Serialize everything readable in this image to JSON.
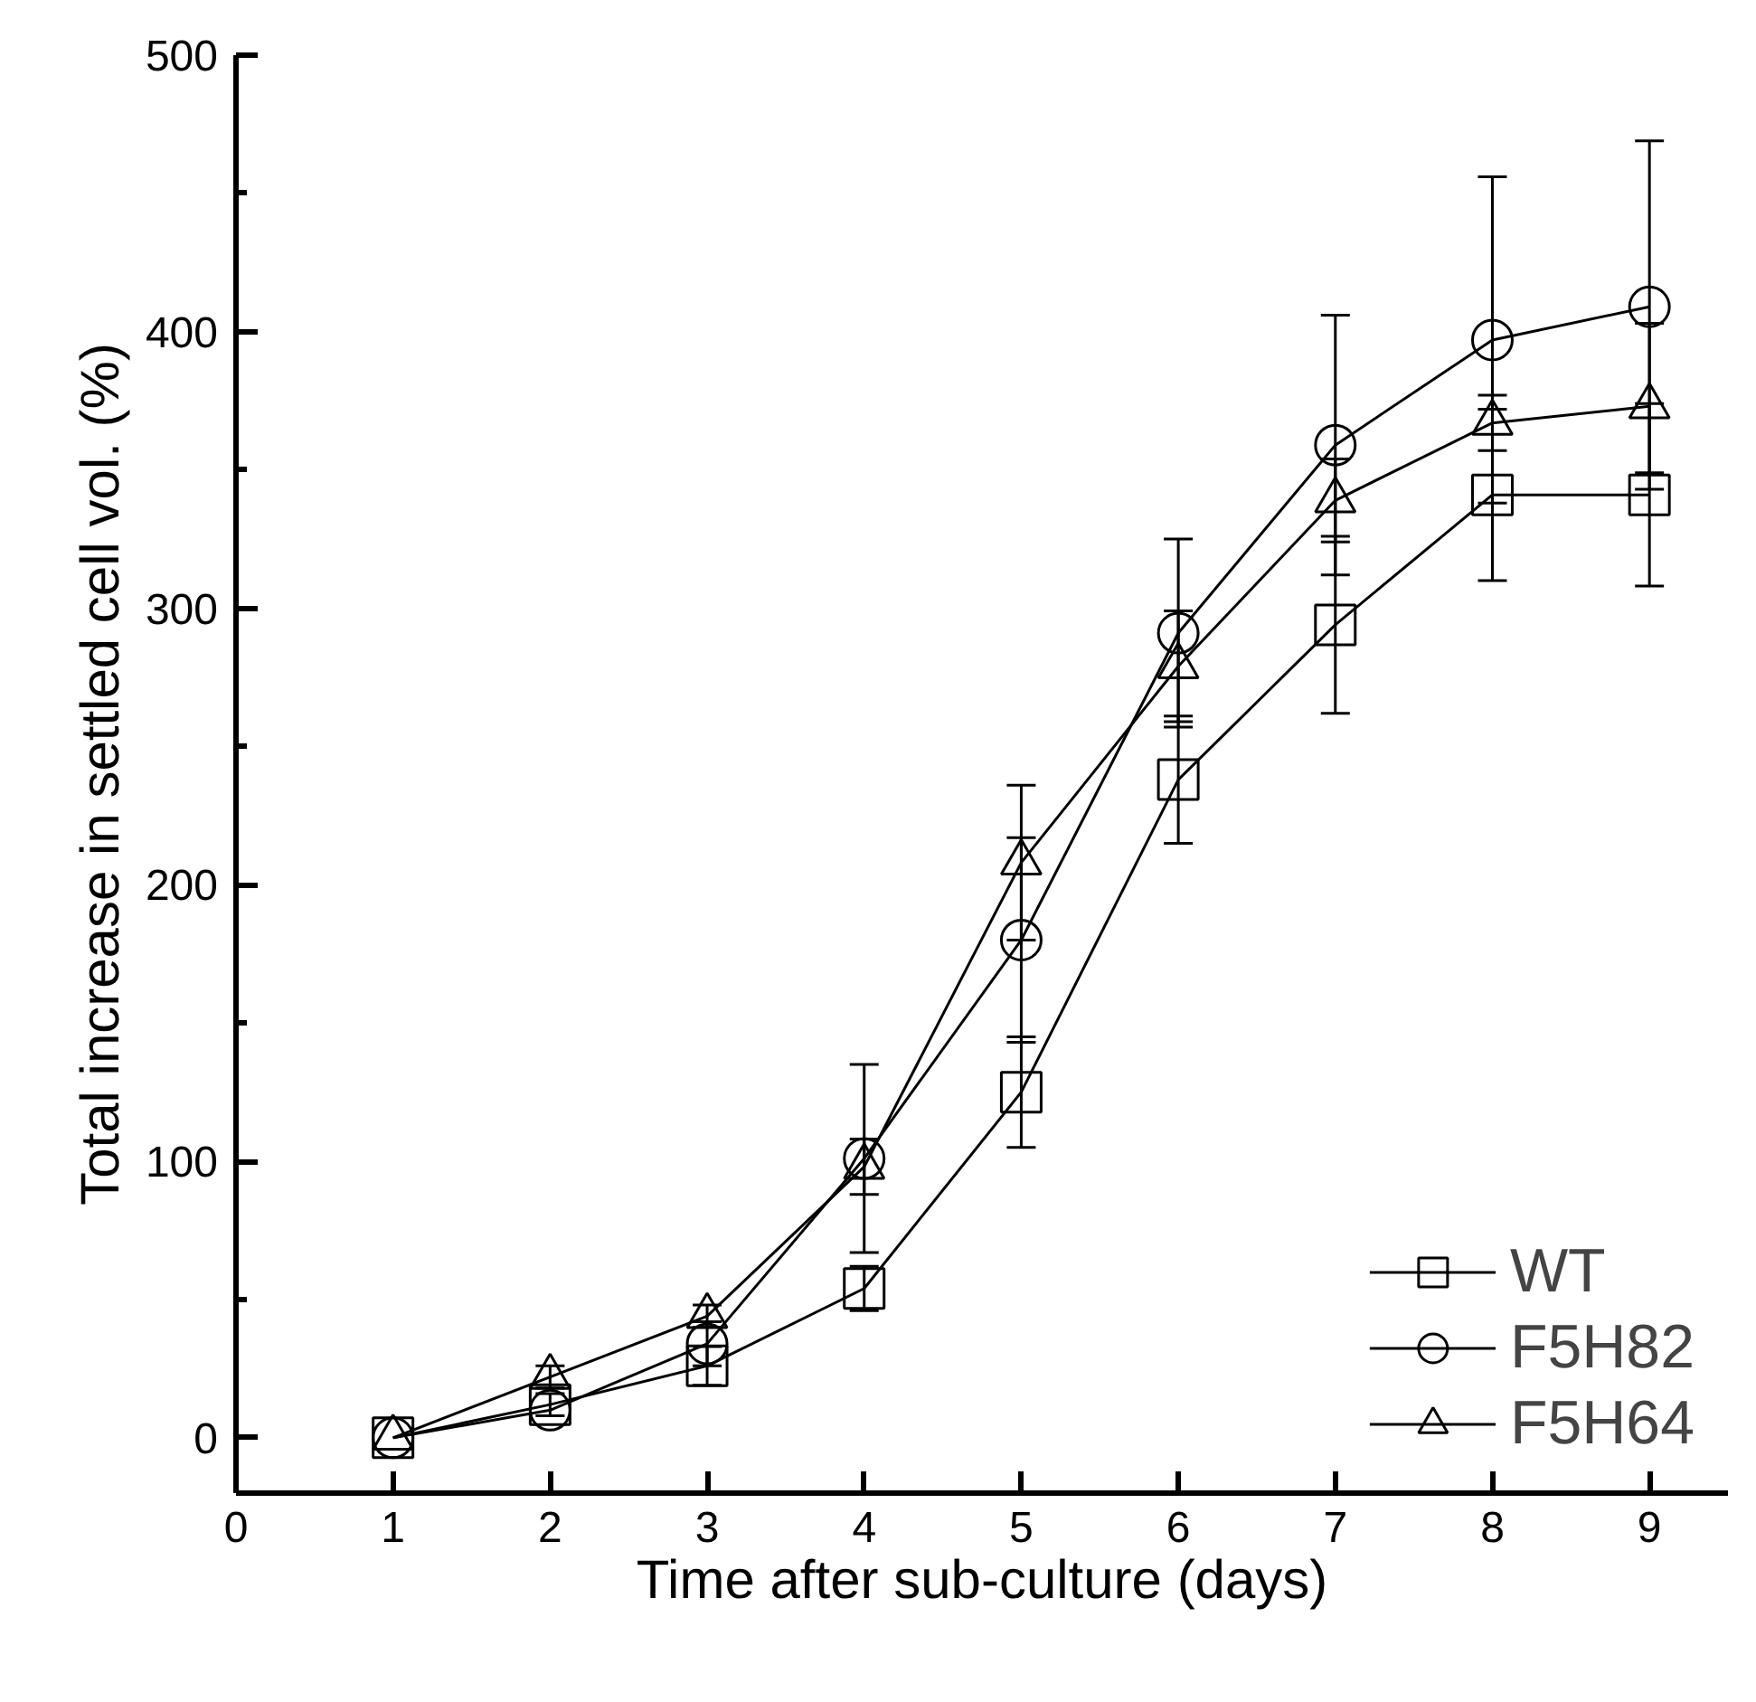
{
  "chart_data": {
    "type": "line",
    "xlabel": "Time after sub-culture (days)",
    "ylabel": "Total increase in settled cell vol. (%)",
    "x": [
      1,
      2,
      3,
      4,
      5,
      6,
      7,
      8,
      9
    ],
    "series": [
      {
        "name": "WT",
        "color": "#000000",
        "marker": "square",
        "values": [
          0,
          12,
          26,
          54,
          125,
          238,
          294,
          341,
          341
        ],
        "errors": [
          null,
          4,
          7,
          8,
          20,
          23,
          32,
          31,
          33
        ]
      },
      {
        "name": "F5H82",
        "color": "#000000",
        "marker": "circle",
        "values": [
          0,
          10,
          34,
          101,
          180,
          291,
          359,
          397,
          409
        ],
        "errors": [
          null,
          null,
          8,
          34,
          37,
          34,
          47,
          59,
          60
        ]
      },
      {
        "name": "F5H64",
        "color": "#000000",
        "marker": "triangle",
        "values": [
          0,
          22,
          44,
          98,
          208,
          279,
          339,
          367,
          373
        ],
        "errors": [
          null,
          4,
          4,
          10,
          28,
          20,
          15,
          10,
          30
        ]
      }
    ],
    "xlim": [
      0,
      9.5
    ],
    "ylim": [
      -20,
      500
    ],
    "xticks": [
      0,
      1,
      2,
      3,
      4,
      5,
      6,
      7,
      8,
      9
    ],
    "yticks": [
      0,
      100,
      200,
      300,
      400,
      500
    ],
    "grid": false,
    "legend": "bottom right",
    "line_style": "solid"
  }
}
